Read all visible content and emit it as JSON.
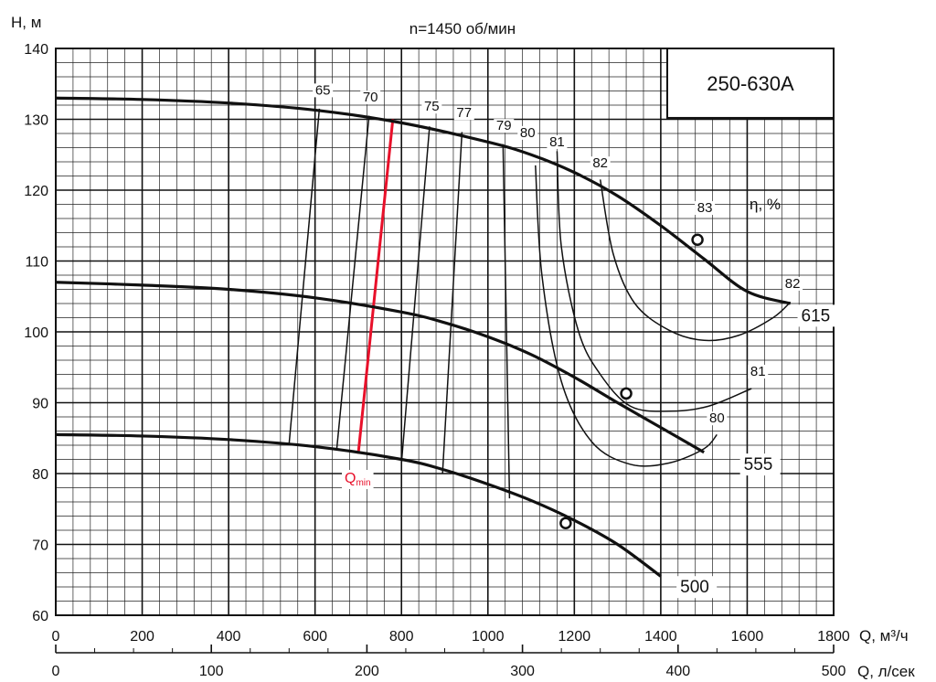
{
  "chart_data": {
    "type": "line",
    "title": "n=1450 об/мин",
    "model": "250-630A",
    "ylabel": "H, м",
    "xlabel": "Q, м³/ч",
    "x2label": "Q, л/сек",
    "eff_label": "η, %",
    "qmin_label": "Q",
    "qmin_sub": "min",
    "xlim": [
      0,
      1800
    ],
    "ylim": [
      60,
      140
    ],
    "x2lim": [
      0,
      500
    ],
    "grid": true,
    "x_ticks": [
      "0",
      "200",
      "400",
      "600",
      "800",
      "1000",
      "1200",
      "1400",
      "1600",
      "1800"
    ],
    "y_ticks": [
      "60",
      "70",
      "80",
      "90",
      "100",
      "110",
      "120",
      "130",
      "140"
    ],
    "x2_ticks": [
      "0",
      "100",
      "200",
      "300",
      "400",
      "500"
    ],
    "series": [
      {
        "name": "615",
        "x": [
          0,
          200,
          400,
          600,
          800,
          1000,
          1100,
          1200,
          1300,
          1400,
          1500,
          1600,
          1700
        ],
        "y": [
          133,
          132.8,
          132.3,
          131.3,
          129.5,
          126.8,
          125,
          122.5,
          119.2,
          115,
          110.3,
          105.7,
          104
        ]
      },
      {
        "name": "555",
        "x": [
          0,
          200,
          400,
          600,
          800,
          900,
          1000,
          1100,
          1200,
          1300,
          1400,
          1500
        ],
        "y": [
          107,
          106.6,
          106,
          104.8,
          102.8,
          101.3,
          99.3,
          96.8,
          93.6,
          90,
          86.5,
          83
        ]
      },
      {
        "name": "500",
        "x": [
          0,
          200,
          400,
          600,
          800,
          900,
          1000,
          1100,
          1200,
          1300,
          1400
        ],
        "y": [
          85.5,
          85.3,
          84.8,
          83.8,
          82,
          80.5,
          78.5,
          76.2,
          73.4,
          70,
          65.5
        ]
      }
    ],
    "bep_points": [
      {
        "x": 1485,
        "y": 113
      },
      {
        "x": 1320,
        "y": 91.3
      },
      {
        "x": 1180,
        "y": 73
      }
    ],
    "efficiency_contours": [
      {
        "label": "65",
        "points": [
          [
            540,
            84.2
          ],
          [
            610,
            131.5
          ]
        ]
      },
      {
        "label": "70",
        "points": [
          [
            650,
            83.3
          ],
          [
            725,
            130.5
          ]
        ]
      },
      {
        "label": "Qmin",
        "color": "#e8102a",
        "points": [
          [
            700,
            82.8
          ],
          [
            780,
            130
          ]
        ]
      },
      {
        "label": "75",
        "points": [
          [
            800,
            81.5
          ],
          [
            865,
            129
          ]
        ]
      },
      {
        "label": "77",
        "points": [
          [
            895,
            80
          ],
          [
            940,
            128.2
          ]
        ]
      },
      {
        "label": "79",
        "points": [
          [
            1050,
            76.5
          ],
          [
            1035,
            126.5
          ]
        ]
      },
      {
        "label": "80",
        "points": [
          [
            1110,
            123.5
          ],
          [
            1125,
            108
          ],
          [
            1170,
            93
          ],
          [
            1240,
            84.5
          ],
          [
            1330,
            81.3
          ],
          [
            1420,
            81.5
          ],
          [
            1500,
            83.5
          ],
          [
            1530,
            85.5
          ]
        ]
      },
      {
        "label": "81",
        "points": [
          [
            1160,
            125.5
          ],
          [
            1170,
            112
          ],
          [
            1210,
            100
          ],
          [
            1260,
            94
          ],
          [
            1330,
            89.5
          ],
          [
            1420,
            88.8
          ],
          [
            1510,
            89.5
          ],
          [
            1610,
            92
          ]
        ]
      },
      {
        "label": "82",
        "points": [
          [
            1260,
            121.5
          ],
          [
            1290,
            111
          ],
          [
            1340,
            104
          ],
          [
            1420,
            100.2
          ],
          [
            1500,
            98.8
          ],
          [
            1580,
            99.5
          ],
          [
            1660,
            102
          ],
          [
            1700,
            104.2
          ]
        ]
      }
    ],
    "eff_labels": [
      {
        "text": "65",
        "x": 618,
        "y": 133.5
      },
      {
        "text": "70",
        "x": 728,
        "y": 132.5
      },
      {
        "text": "75",
        "x": 870,
        "y": 131.2
      },
      {
        "text": "77",
        "x": 945,
        "y": 130.3
      },
      {
        "text": "79",
        "x": 1037,
        "y": 128.5
      },
      {
        "text": "80",
        "x": 1092,
        "y": 127.5
      },
      {
        "text": "81",
        "x": 1160,
        "y": 126.2
      },
      {
        "text": "82",
        "x": 1260,
        "y": 123.2
      },
      {
        "text": "83",
        "x": 1502,
        "y": 116.9
      },
      {
        "text": "82",
        "x": 1705,
        "y": 106.2
      },
      {
        "text": "81",
        "x": 1625,
        "y": 93.8
      },
      {
        "text": "80",
        "x": 1530,
        "y": 87.2
      }
    ],
    "curve_labels": [
      {
        "text": "615",
        "x": 1725,
        "y": 101.5
      },
      {
        "text": "555",
        "x": 1592,
        "y": 80.5
      },
      {
        "text": "500",
        "x": 1445,
        "y": 63.2
      }
    ]
  }
}
